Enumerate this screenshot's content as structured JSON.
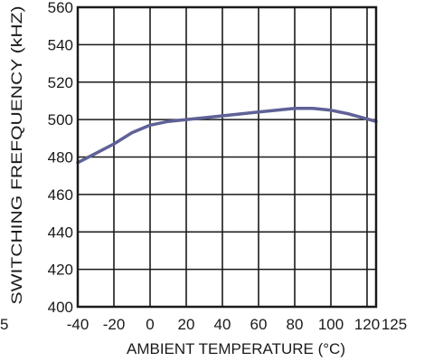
{
  "chart_data": {
    "type": "line",
    "title": "",
    "xlabel": "AMBIENT TEMPERATURE (°C)",
    "ylabel": "SWITCHING FREFQUENCY (kHZ)",
    "xlim": [
      -40,
      125
    ],
    "ylim": [
      400,
      560
    ],
    "x_ticks": [
      -40,
      -20,
      0,
      20,
      40,
      60,
      80,
      100,
      120
    ],
    "x_tick_labels": [
      "-40",
      "-20",
      "0",
      "20",
      "40",
      "60",
      "80",
      "100",
      "120"
    ],
    "x_extra_tick_label": "125",
    "y_ticks": [
      400,
      420,
      440,
      460,
      480,
      500,
      520,
      540,
      560
    ],
    "y_tick_labels": [
      "400",
      "420",
      "440",
      "460",
      "480",
      "500",
      "520",
      "540",
      "560"
    ],
    "left_edge_label": "5",
    "grid": true,
    "series": [
      {
        "color": "#5f6196",
        "x": [
          -40,
          -30,
          -20,
          -10,
          0,
          10,
          20,
          30,
          40,
          50,
          60,
          70,
          80,
          85,
          90,
          100,
          110,
          125
        ],
        "y": [
          477,
          482,
          487,
          493,
          497,
          499,
          500,
          501,
          502,
          503,
          504,
          505,
          506,
          506,
          506,
          505,
          503,
          499
        ]
      }
    ]
  }
}
